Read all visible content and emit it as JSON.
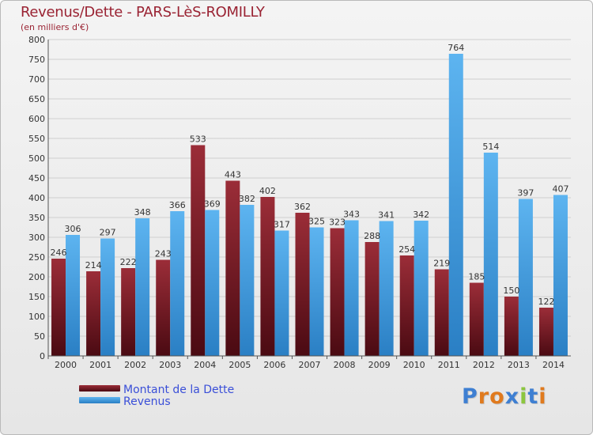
{
  "header": {
    "title": "Revenus/Dette - PARS-LèS-ROMILLY",
    "subtitle": "(en milliers d'€)"
  },
  "colors": {
    "dette": "#7a1a24",
    "revenus": "#4aa4e4"
  },
  "legend": {
    "dette_label": "Montant de la Dette",
    "revenus_label": "Revenus"
  },
  "logo": {
    "letters": [
      "P",
      "r",
      "o",
      "x",
      "i",
      "t",
      "i"
    ],
    "colors": [
      "#3e7fd2",
      "#e07a1e",
      "#e07a1e",
      "#3e7fd2",
      "#8cc63f",
      "#3e7fd2",
      "#e07a1e"
    ]
  },
  "chart_data": {
    "type": "bar",
    "categories": [
      "2000",
      "2001",
      "2002",
      "2003",
      "2004",
      "2005",
      "2006",
      "2007",
      "2008",
      "2009",
      "2010",
      "2011",
      "2012",
      "2013",
      "2014"
    ],
    "series": [
      {
        "name": "Montant de la Dette",
        "values": [
          246,
          214,
          222,
          243,
          533,
          443,
          402,
          362,
          323,
          288,
          254,
          219,
          185,
          150,
          122
        ]
      },
      {
        "name": "Revenus",
        "values": [
          306,
          297,
          348,
          366,
          369,
          382,
          317,
          325,
          343,
          341,
          342,
          764,
          514,
          397,
          407
        ]
      }
    ],
    "ylim": [
      0,
      800
    ],
    "yticks": [
      0,
      50,
      100,
      150,
      200,
      250,
      300,
      350,
      400,
      450,
      500,
      550,
      600,
      650,
      700,
      750,
      800
    ],
    "grid": true,
    "legend_position": "bottom-left"
  }
}
